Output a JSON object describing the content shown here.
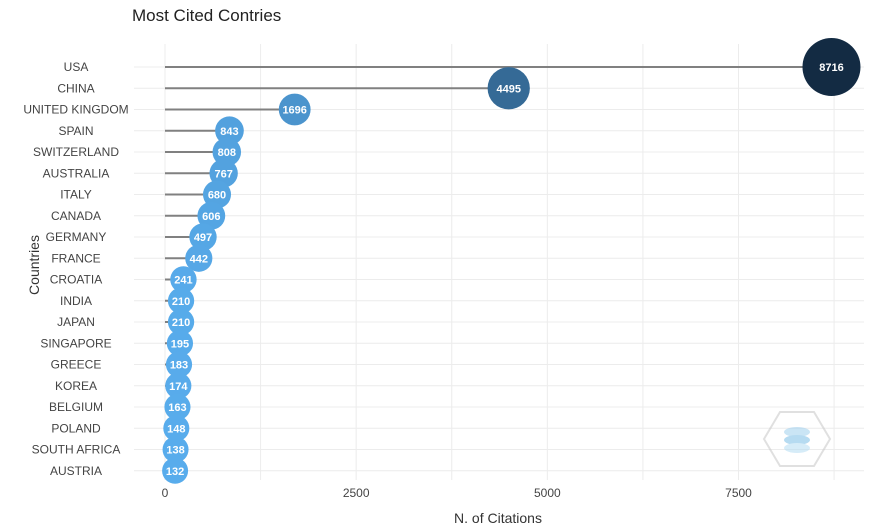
{
  "chart_data": {
    "type": "scatter",
    "title": "Most Cited Contries",
    "xlabel": "N. of Citations",
    "ylabel": "Countries",
    "categories": [
      "USA",
      "CHINA",
      "UNITED KINGDOM",
      "SPAIN",
      "SWITZERLAND",
      "AUSTRALIA",
      "ITALY",
      "CANADA",
      "GERMANY",
      "FRANCE",
      "CROATIA",
      "INDIA",
      "JAPAN",
      "SINGAPORE",
      "GREECE",
      "KOREA",
      "BELGIUM",
      "POLAND",
      "SOUTH AFRICA",
      "AUSTRIA"
    ],
    "values": [
      8716,
      4495,
      1696,
      843,
      808,
      767,
      680,
      606,
      497,
      442,
      241,
      210,
      210,
      195,
      183,
      174,
      163,
      148,
      138,
      132
    ],
    "xlim": [
      0,
      9000
    ],
    "xticks": [
      0,
      2500,
      5000,
      7500
    ],
    "grid": true,
    "legend": "none",
    "colors": {
      "low": "#58ACEC",
      "high": "#132B43",
      "stem": "#808080",
      "grid": "#ECECEC"
    }
  }
}
